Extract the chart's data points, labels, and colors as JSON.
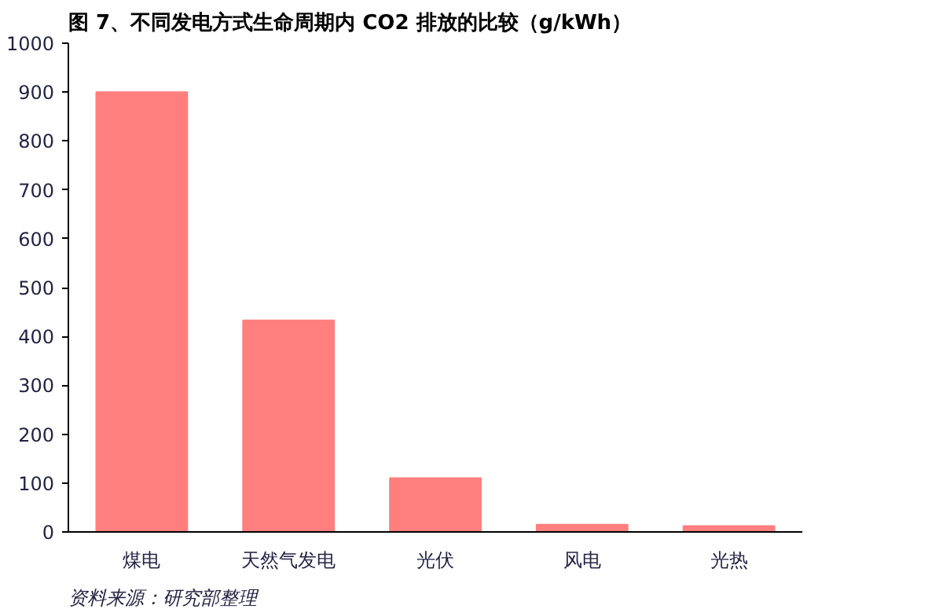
{
  "chart_data": {
    "type": "bar",
    "title": "图 7、不同发电方式生命周期内 CO2 排放的比较（g/kWh）",
    "categories": [
      "煤电",
      "天然气发电",
      "光伏",
      "风电",
      "光热"
    ],
    "values": [
      900,
      433,
      110,
      15,
      12
    ],
    "color": "#ff7f7f",
    "ylim": [
      0,
      1000
    ],
    "yticks": [
      0,
      100,
      200,
      300,
      400,
      500,
      600,
      700,
      800,
      900,
      1000
    ],
    "grid": false,
    "annotations": [
      "资料来源：研究部整理"
    ]
  }
}
